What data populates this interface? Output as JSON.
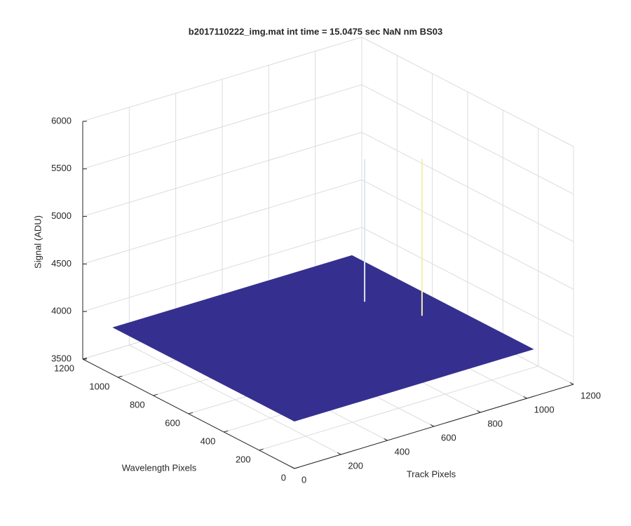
{
  "chart_data": {
    "type": "surface3d",
    "title": "b2017110222_img.mat int time = 15.0475 sec  NaN nm BS03",
    "xlabel": "Track Pixels",
    "ylabel": "Wavelength Pixels",
    "zlabel": "Signal (ADU)",
    "xlim": [
      0,
      1200
    ],
    "ylim": [
      0,
      1200
    ],
    "zlim": [
      3500,
      6000
    ],
    "xticks": [
      0,
      200,
      400,
      600,
      800,
      1000,
      1200
    ],
    "yticks": [
      0,
      200,
      400,
      600,
      800,
      1000,
      1200
    ],
    "zticks": [
      3500,
      4000,
      4500,
      5000,
      5500,
      6000
    ],
    "grid": true,
    "surface": {
      "x": [
        0,
        1024
      ],
      "y": [
        0,
        1024
      ],
      "z": [
        [
          4000,
          4000
        ],
        [
          4000,
          4000
        ]
      ],
      "color": "#35308f"
    },
    "spikes": [
      {
        "x": 817,
        "y": 679,
        "z": 5500,
        "color": "#d8e6f5"
      },
      {
        "x": 899,
        "y": 462,
        "z": 5650,
        "color": "#f2f0a8"
      }
    ]
  }
}
